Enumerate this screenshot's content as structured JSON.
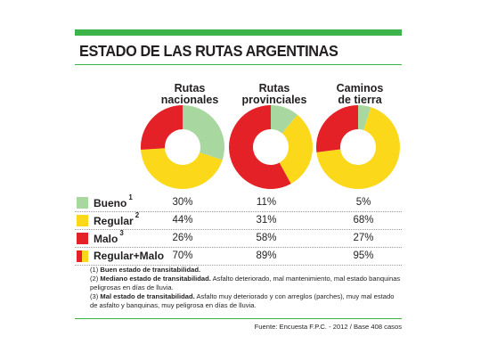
{
  "colors": {
    "bueno": "#a8d8a0",
    "regular": "#fbd91a",
    "malo": "#e42127",
    "accent": "#3db44a"
  },
  "header": {
    "title": "ESTADO DE LAS RUTAS ARGENTINAS"
  },
  "columns": [
    {
      "line1": "Rutas",
      "line2": "nacionales"
    },
    {
      "line1": "Rutas",
      "line2": "provinciales"
    },
    {
      "line1": "Caminos",
      "line2": "de tierra"
    }
  ],
  "rows": [
    {
      "label": "Bueno",
      "note": "1",
      "values": [
        "30%",
        "11%",
        "5%"
      ]
    },
    {
      "label": "Regular",
      "note": "2",
      "values": [
        "44%",
        "31%",
        "68%"
      ]
    },
    {
      "label": "Malo",
      "note": "3",
      "values": [
        "26%",
        "58%",
        "27%"
      ]
    },
    {
      "label": "Regular+Malo",
      "note": "",
      "values": [
        "70%",
        "89%",
        "95%"
      ]
    }
  ],
  "chart_data": {
    "type": "pie",
    "categories": [
      "Bueno",
      "Regular",
      "Malo"
    ],
    "series": [
      {
        "name": "Rutas nacionales",
        "values": [
          30,
          44,
          26
        ]
      },
      {
        "name": "Rutas provinciales",
        "values": [
          11,
          31,
          58
        ]
      },
      {
        "name": "Caminos de tierra",
        "values": [
          5,
          68,
          27
        ]
      }
    ],
    "title": "ESTADO DE LAS RUTAS ARGENTINAS"
  },
  "notes": [
    {
      "num": "(1)",
      "bold": "Buen estado de transitabilidad.",
      "text": ""
    },
    {
      "num": "(2)",
      "bold": "Mediano estado de transitabilidad.",
      "text": " Asfalto deteriorado, mal mantenimiento, mal estado banquinas peligrosas en días de lluvia."
    },
    {
      "num": "(3)",
      "bold": "Mal estado de transitabilidad.",
      "text": " Asfalto muy deteriorado y con arreglos (parches), muy mal estado de asfalto y banquinas, muy peligrosa en días de lluvia."
    }
  ],
  "source": "Fuente: Encuesta F.P.C. - 2012 / Base 408 casos"
}
